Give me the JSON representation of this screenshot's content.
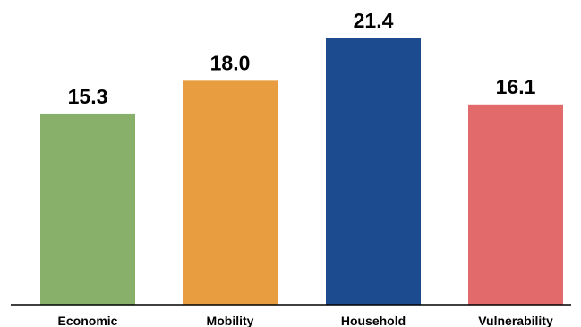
{
  "chart_data": {
    "type": "bar",
    "categories": [
      "Economic",
      "Mobility",
      "Household",
      "Vulnerability"
    ],
    "values": [
      15.3,
      18.0,
      21.4,
      16.1
    ],
    "value_labels": [
      "15.3",
      "18.0",
      "21.4",
      "16.1"
    ],
    "colors": [
      "#88b06a",
      "#e89d41",
      "#1c4b8f",
      "#e26a6a"
    ],
    "title": "",
    "xlabel": "",
    "ylabel": "",
    "ylim": [
      0,
      21.4
    ],
    "grid": false,
    "legend": "none"
  }
}
